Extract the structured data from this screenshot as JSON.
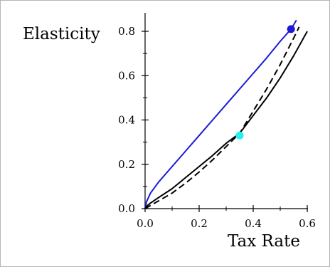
{
  "chart_data": {
    "type": "line",
    "xlabel": "Tax Rate",
    "ylabel": "Elasticity",
    "xlim": [
      0.0,
      0.6
    ],
    "ylim": [
      0.0,
      0.85
    ],
    "x_ticks": [
      "0.0",
      "0.2",
      "0.4",
      "0.6"
    ],
    "y_ticks": [
      "0.0",
      "0.2",
      "0.4",
      "0.6",
      "0.8"
    ],
    "grid": false,
    "legend": "none",
    "series": [
      {
        "color": "#1a1ad6",
        "style": "solid",
        "x": [
          0.0,
          0.005,
          0.02,
          0.05,
          0.1,
          0.15,
          0.2,
          0.25,
          0.3,
          0.35,
          0.4,
          0.45,
          0.5,
          0.54,
          0.56
        ],
        "y": [
          0.0,
          0.03,
          0.07,
          0.12,
          0.19,
          0.26,
          0.33,
          0.4,
          0.47,
          0.54,
          0.61,
          0.68,
          0.755,
          0.81,
          0.85
        ]
      },
      {
        "color": "#000000",
        "style": "solid",
        "x": [
          0.0,
          0.005,
          0.02,
          0.05,
          0.1,
          0.15,
          0.2,
          0.25,
          0.3,
          0.35,
          0.4,
          0.45,
          0.5,
          0.55,
          0.6
        ],
        "y": [
          0.0,
          0.01,
          0.025,
          0.05,
          0.09,
          0.14,
          0.19,
          0.24,
          0.295,
          0.34,
          0.42,
          0.5,
          0.59,
          0.69,
          0.8
        ]
      },
      {
        "color": "#000000",
        "style": "dashed",
        "x": [
          0.0,
          0.05,
          0.1,
          0.15,
          0.2,
          0.25,
          0.3,
          0.35,
          0.4,
          0.45,
          0.5,
          0.55,
          0.57
        ],
        "y": [
          0.0,
          0.035,
          0.07,
          0.115,
          0.165,
          0.22,
          0.28,
          0.34,
          0.44,
          0.54,
          0.65,
          0.77,
          0.82
        ]
      }
    ],
    "markers": [
      {
        "x": 0.54,
        "y": 0.81,
        "color": "#1a1ad6"
      },
      {
        "x": 0.35,
        "y": 0.33,
        "color": "#24f0f0"
      }
    ]
  }
}
